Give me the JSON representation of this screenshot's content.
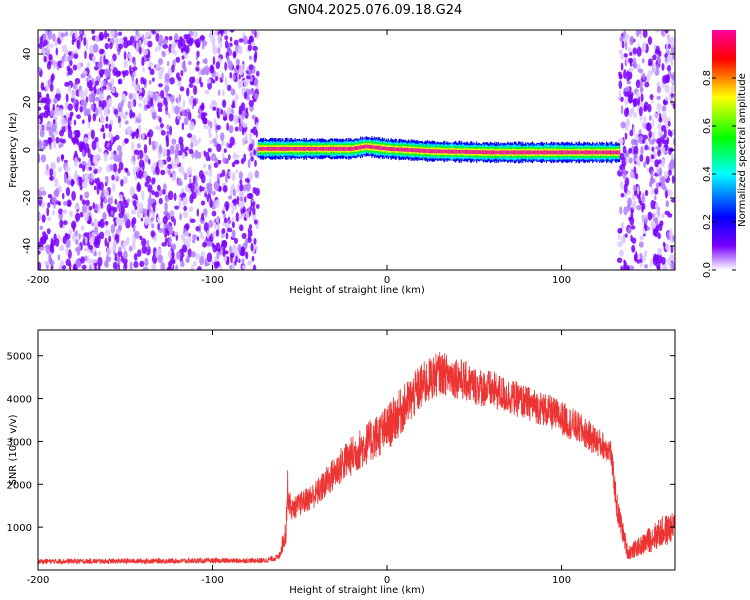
{
  "title": "GN04.2025.076.09.18.G24",
  "chart_data": [
    {
      "type": "heatmap",
      "xlabel": "Height of straight line (km)",
      "ylabel": "Frequency (Hz)",
      "xlim": [
        -200,
        165
      ],
      "ylim": [
        -50,
        50
      ],
      "xticks": [
        -200,
        -100,
        0,
        100
      ],
      "yticks": [
        -40,
        -20,
        0,
        20,
        40
      ],
      "colorbar": {
        "label": "Normalized spectral amplitude",
        "range": [
          0,
          1
        ],
        "ticks": [
          0.0,
          0.2,
          0.4,
          0.6,
          0.8
        ],
        "tick_labels": [
          "0.0",
          "0.2",
          "0.4",
          "0.6",
          "0.8"
        ],
        "colormap": [
          "#ffffff",
          "#7a00ff",
          "#0000ff",
          "#00ffff",
          "#00ff00",
          "#ffff00",
          "#ff0000",
          "#ff00a0"
        ]
      },
      "regions": [
        {
          "x_range": [
            -200,
            -74
          ],
          "content": "noise",
          "amplitude": [
            0.0,
            0.2
          ]
        },
        {
          "x_range": [
            -74,
            133
          ],
          "content": "signal band near 0 Hz",
          "center_freq_hz": [
            {
              "x": -74,
              "f": 0.5
            },
            {
              "x": -20,
              "f": 0.5
            },
            {
              "x": -12,
              "f": 1.5
            },
            {
              "x": 0,
              "f": 0.5
            },
            {
              "x": 25,
              "f": -0.5
            },
            {
              "x": 60,
              "f": -1
            },
            {
              "x": 100,
              "f": -1
            },
            {
              "x": 133,
              "f": -1
            }
          ],
          "amplitude": [
            0.9,
            1.0
          ]
        },
        {
          "x_range": [
            133,
            165
          ],
          "content": "noise",
          "amplitude": [
            0.0,
            0.2
          ]
        }
      ]
    },
    {
      "type": "line",
      "xlabel": "Height of straight line (km)",
      "ylabel": "SNR (10 * v/v)",
      "xlim": [
        -200,
        165
      ],
      "ylim": [
        0,
        5600
      ],
      "xticks": [
        -200,
        -100,
        0,
        100
      ],
      "yticks": [
        1000,
        2000,
        3000,
        4000,
        5000
      ],
      "series_color": "#ee3333",
      "envelope": {
        "x": [
          -200,
          -70,
          -62,
          -58,
          -57,
          -55,
          -40,
          -25,
          -10,
          0,
          10,
          20,
          30,
          40,
          50,
          60,
          70,
          80,
          90,
          100,
          110,
          120,
          128,
          132,
          138,
          145,
          150,
          158,
          165
        ],
        "mid": [
          200,
          220,
          300,
          900,
          1900,
          1400,
          1800,
          2500,
          3000,
          3300,
          3800,
          4300,
          4600,
          4500,
          4300,
          4200,
          4050,
          3900,
          3750,
          3550,
          3300,
          3000,
          2800,
          1400,
          400,
          550,
          700,
          900,
          1000
        ],
        "amp": [
          120,
          120,
          150,
          700,
          900,
          500,
          650,
          900,
          1000,
          1100,
          1100,
          1100,
          1000,
          1000,
          900,
          900,
          850,
          800,
          800,
          800,
          750,
          700,
          600,
          700,
          350,
          450,
          600,
          750,
          700
        ]
      }
    }
  ]
}
